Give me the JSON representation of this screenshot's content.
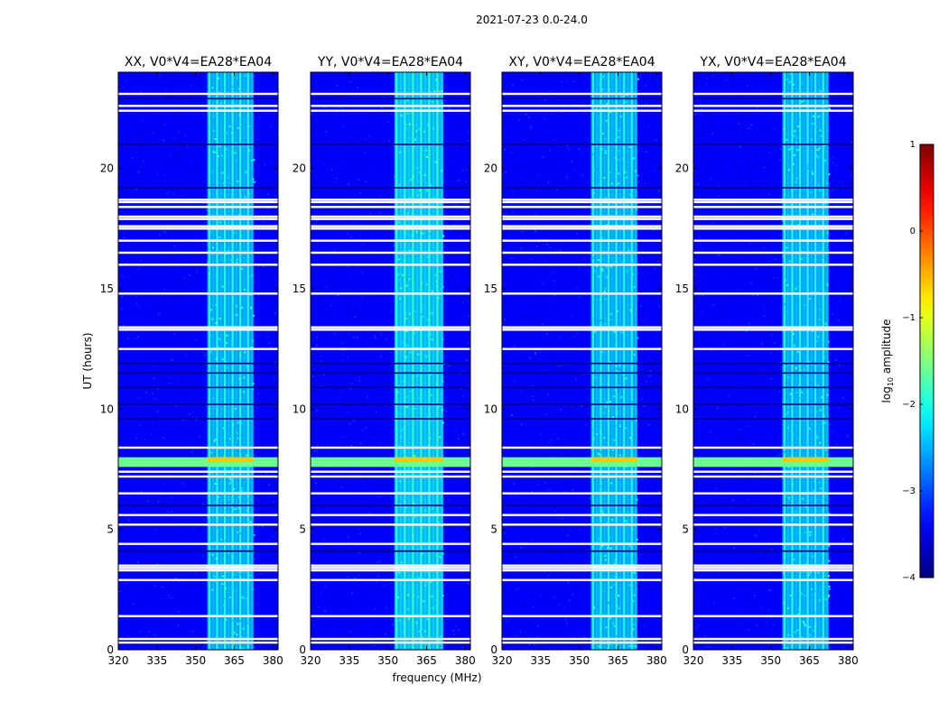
{
  "chart_data": {
    "type": "heatmap",
    "suptitle": "2021-07-23 0.0-24.0",
    "xlabel": "frequency (MHz)",
    "ylabel": "UT (hours)",
    "xlim": [
      320,
      382
    ],
    "ylim": [
      0,
      24
    ],
    "xticks": [
      320,
      335,
      350,
      365,
      380
    ],
    "yticks": [
      0,
      5,
      10,
      15,
      20
    ],
    "panels": [
      {
        "title": "XX, V0*V4=EA28*EA04",
        "band_center": 363.5,
        "band_width": 18,
        "band_level": -2.3
      },
      {
        "title": "YY, V0*V4=EA28*EA04",
        "band_center": 362.0,
        "band_width": 19,
        "band_level": -2.2
      },
      {
        "title": "XY, V0*V4=EA28*EA04",
        "band_center": 363.5,
        "band_width": 18,
        "band_level": -2.3
      },
      {
        "title": "YX, V0*V4=EA28*EA04",
        "band_center": 363.5,
        "band_width": 18,
        "band_level": -2.3
      }
    ],
    "background_level": -3.4,
    "flagged_hours_white": [
      0.3,
      0.45,
      1.4,
      2.9,
      3.3,
      3.4,
      3.5,
      4.4,
      5.2,
      5.6,
      6.5,
      7.2,
      7.4,
      8.4,
      12.5,
      13.3,
      13.4,
      14.8,
      16.0,
      16.5,
      17.0,
      17.5,
      17.6,
      17.9,
      18.0,
      18.4,
      18.6,
      18.7,
      22.4,
      22.6,
      23.1
    ],
    "flagged_hours_black": [
      4.1,
      6.0,
      9.6,
      10.2,
      10.9,
      11.5,
      11.9,
      19.2,
      21.0,
      22.9
    ],
    "event": {
      "hour_start": 7.6,
      "hour_end": 8.0,
      "level": -1.6,
      "peak_level": -0.6
    },
    "colorbar": {
      "label": "log10 amplitude",
      "label_main": "log",
      "label_sub": "10",
      "label_rest": " amplitude",
      "min": -4,
      "max": 1,
      "ticks": [
        -4,
        -3,
        -2,
        -1,
        0,
        1
      ],
      "tick_labels": [
        "−4",
        "−3",
        "−2",
        "−1",
        "0",
        "1"
      ],
      "colormap": "jet"
    }
  }
}
